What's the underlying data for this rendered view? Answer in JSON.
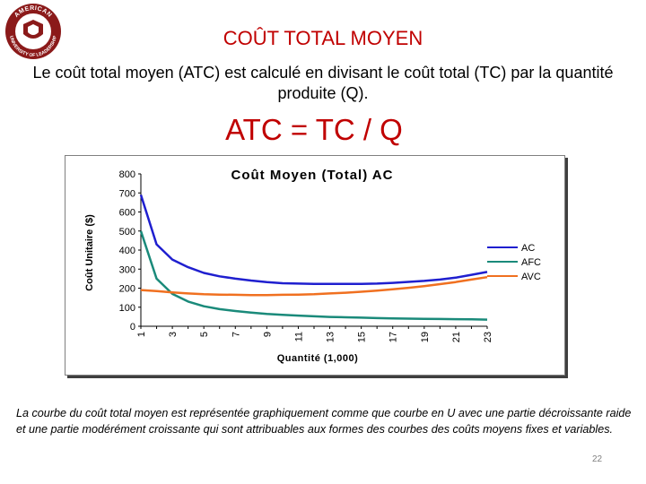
{
  "slide": {
    "title": "COÛT TOTAL MOYEN",
    "intro": "Le coût total moyen (ATC) est calculé en divisant le coût total (TC) par la quantité produite (Q).",
    "formula": "ATC = TC / Q",
    "caption": "La courbe du coût total moyen est représentée graphiquement comme que courbe en U avec une partie décroissante raide et une partie modérément croissante qui sont attribuables aux formes des courbes des coûts moyens fixes et variables.",
    "page_number": "22"
  },
  "logo": {
    "text_top": "AMERICAN",
    "text_bottom": "UNIVERSITY OF LEADERSHIP",
    "color": "#8b1a1a"
  },
  "chart_data": {
    "type": "line",
    "title": "Coût Moyen (Total) AC",
    "xlabel": "Quantité (1,000)",
    "ylabel": "Coût Unitaire ($)",
    "ylim": [
      0,
      800
    ],
    "yticks": [
      "0",
      "100",
      "200",
      "300",
      "400",
      "500",
      "600",
      "700",
      "800"
    ],
    "categories": [
      1,
      2,
      3,
      4,
      5,
      6,
      7,
      8,
      9,
      10,
      11,
      12,
      13,
      14,
      15,
      16,
      17,
      18,
      19,
      20,
      21,
      22,
      23
    ],
    "xtick_labels": [
      "1",
      "3",
      "5",
      "7",
      "9",
      "11",
      "13",
      "15",
      "17",
      "19",
      "21",
      "23"
    ],
    "legend_position": "right",
    "series": [
      {
        "name": "AC",
        "color": "#1f1fcf",
        "values": [
          690,
          430,
          350,
          310,
          280,
          262,
          250,
          240,
          232,
          226,
          224,
          222,
          222,
          222,
          222,
          224,
          228,
          233,
          238,
          245,
          255,
          270,
          285
        ]
      },
      {
        "name": "AFC",
        "color": "#1a8a7a",
        "values": [
          500,
          250,
          170,
          130,
          105,
          90,
          80,
          72,
          65,
          60,
          56,
          52,
          49,
          47,
          45,
          43,
          41,
          40,
          39,
          38,
          37,
          36,
          35
        ]
      },
      {
        "name": "AVC",
        "color": "#f07020",
        "values": [
          190,
          185,
          178,
          172,
          168,
          166,
          165,
          164,
          164,
          165,
          166,
          168,
          172,
          176,
          181,
          187,
          194,
          202,
          211,
          221,
          232,
          245,
          258
        ]
      }
    ]
  }
}
